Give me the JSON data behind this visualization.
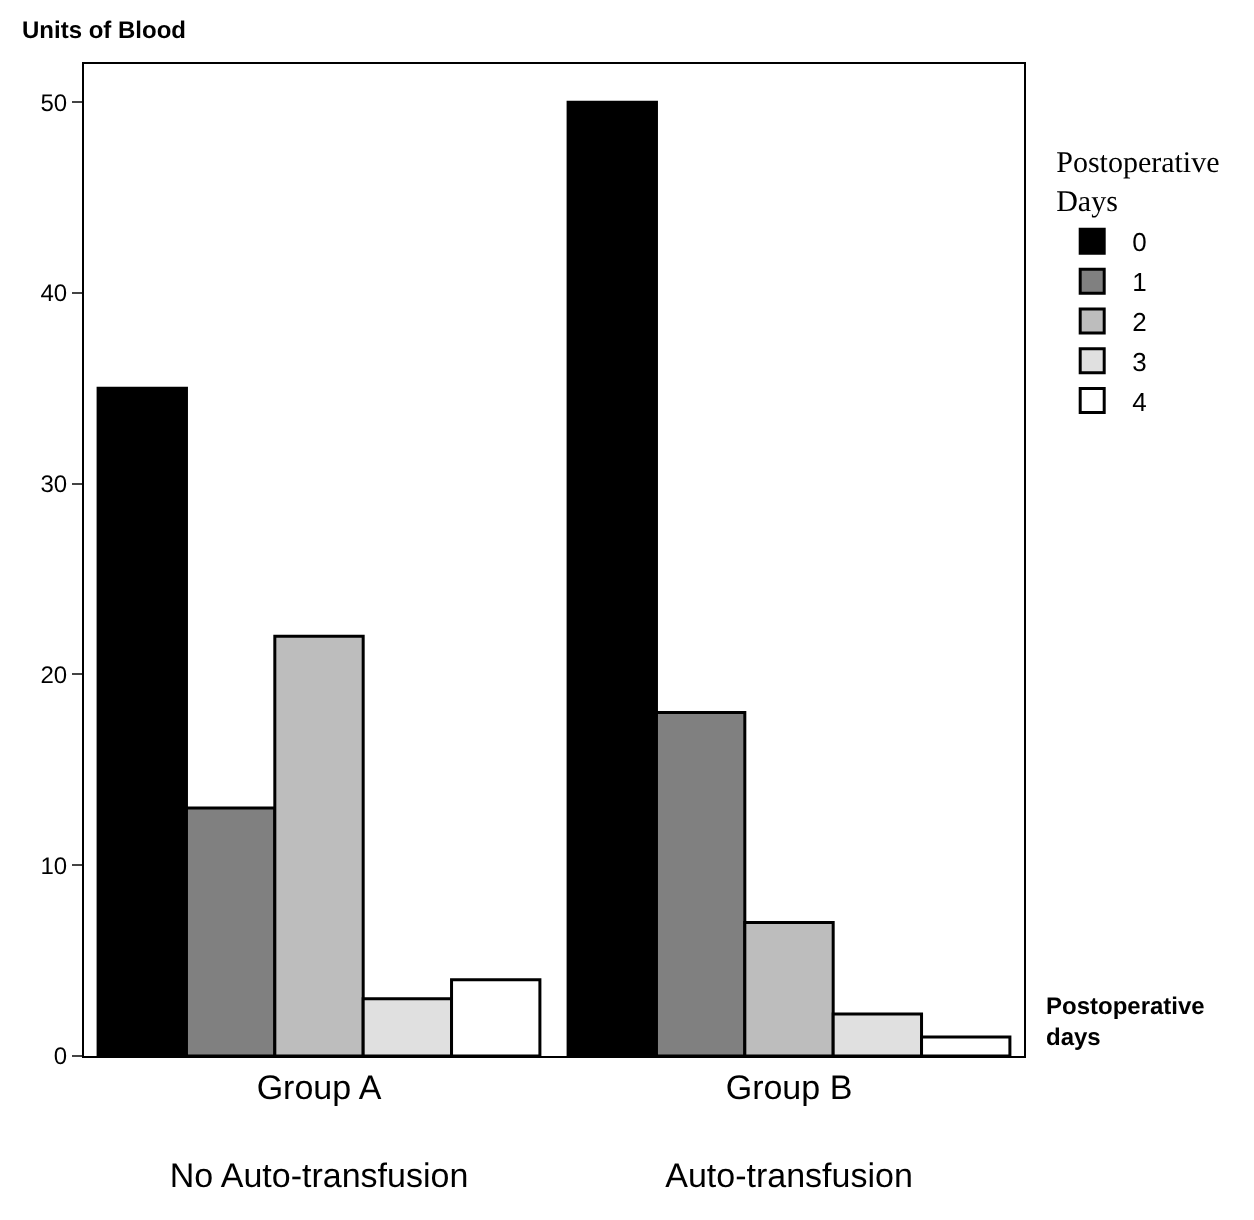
{
  "chart_data": {
    "type": "bar",
    "categories": [
      "Group A\nNo Auto-transfusion",
      "Group B\nAuto-transfusion"
    ],
    "series": [
      {
        "name": "0",
        "color": "#000000",
        "values": [
          35,
          50
        ]
      },
      {
        "name": "1",
        "color": "#808080",
        "values": [
          13,
          18
        ]
      },
      {
        "name": "2",
        "color": "#bdbdbd",
        "values": [
          22,
          7
        ]
      },
      {
        "name": "3",
        "color": "#e0e0e0",
        "values": [
          3,
          2.2
        ]
      },
      {
        "name": "4",
        "color": "#ffffff",
        "values": [
          4,
          1
        ]
      }
    ],
    "ylabel": "Units of Blood",
    "xlabel": "Postoperative days",
    "legend_title": "Postoperative Days",
    "ylim": [
      0,
      52
    ],
    "yticks": [
      0,
      10,
      20,
      30,
      40,
      50
    ],
    "legend": "top right"
  }
}
